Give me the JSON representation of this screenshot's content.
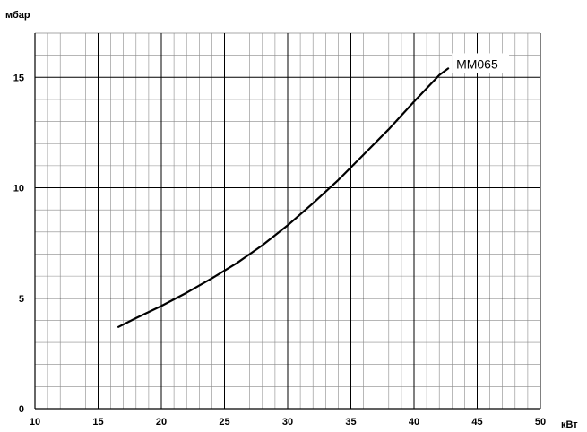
{
  "chart_data": {
    "type": "line",
    "ylabel": "мбар",
    "xlabel": "кВт",
    "xlim": [
      10,
      50
    ],
    "ylim": [
      0,
      17
    ],
    "x_ticks": [
      10,
      15,
      20,
      25,
      30,
      35,
      40,
      45,
      50
    ],
    "y_ticks": [
      0,
      5,
      10,
      15
    ],
    "minor_x_step": 1,
    "minor_y_step": 1,
    "grid": true,
    "series": [
      {
        "name": "MM065",
        "color": "#000000",
        "x": [
          16.6,
          18,
          20,
          22,
          24,
          26,
          28,
          30,
          32,
          34,
          36,
          38,
          40,
          42,
          42.7
        ],
        "y": [
          3.7,
          4.1,
          4.65,
          5.25,
          5.9,
          6.6,
          7.4,
          8.3,
          9.3,
          10.35,
          11.5,
          12.65,
          13.9,
          15.1,
          15.4
        ]
      }
    ]
  }
}
